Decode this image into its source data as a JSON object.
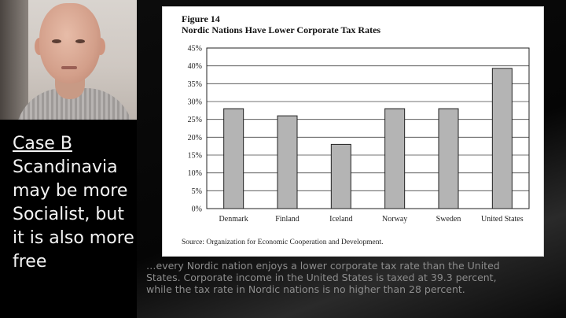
{
  "slide": {
    "case_title": "Case B",
    "case_body": "Scandinavia may be more Socialist, but it is also more free",
    "quote": "…every Nordic nation enjoys a lower corporate tax rate than the United States. Corporate income in the United States is taxed at 39.3 percent, while the tax rate in Nordic nations is no higher than 28 percent."
  },
  "figure": {
    "label": "Figure 14",
    "title": "Nordic Nations Have Lower Corporate Tax Rates",
    "source": "Source: Organization for Economic Cooperation and Development."
  },
  "colors": {
    "bar_fill": "#b4b4b4",
    "bar_stroke": "#222222"
  },
  "chart_data": {
    "type": "bar",
    "title": "Nordic Nations Have Lower Corporate Tax Rates",
    "xlabel": "",
    "ylabel": "",
    "categories": [
      "Denmark",
      "Finland",
      "Iceland",
      "Norway",
      "Sweden",
      "United States"
    ],
    "values": [
      28,
      26,
      18,
      28,
      28,
      39.3
    ],
    "ylim": [
      0,
      45
    ],
    "yticks": [
      "0%",
      "5%",
      "10%",
      "15%",
      "20%",
      "25%",
      "30%",
      "35%",
      "40%",
      "45%"
    ],
    "grid": "horizontal",
    "legend": "none"
  }
}
